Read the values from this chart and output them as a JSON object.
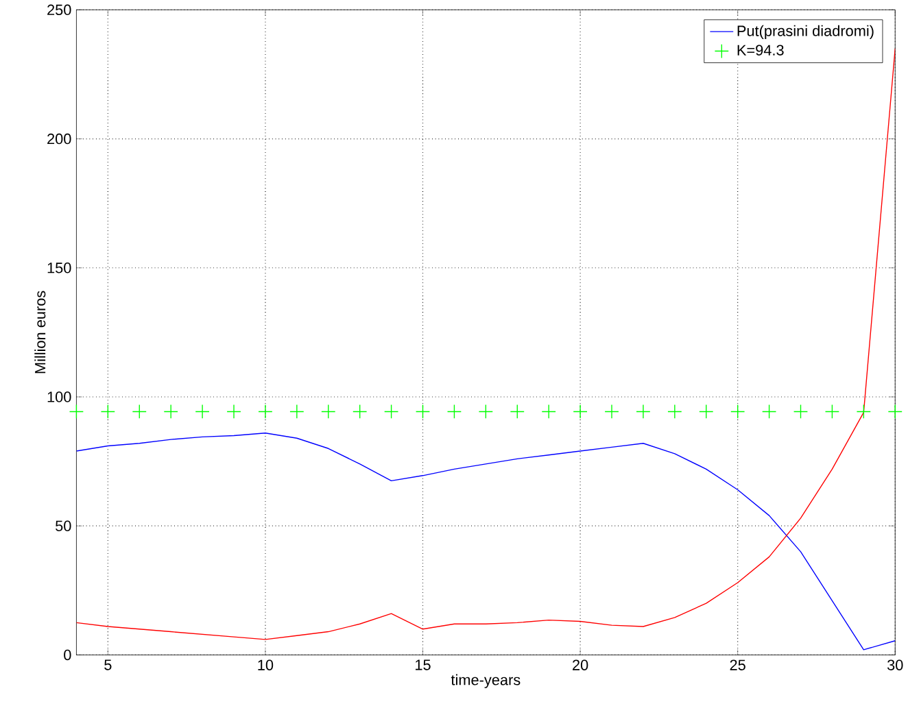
{
  "chart_data": {
    "type": "line",
    "xlabel": "time-years",
    "ylabel": "Million euros",
    "x": [
      4,
      5,
      6,
      7,
      8,
      9,
      10,
      11,
      12,
      13,
      14,
      15,
      16,
      17,
      18,
      19,
      20,
      21,
      22,
      23,
      24,
      25,
      26,
      27,
      28,
      29,
      30
    ],
    "series": [
      {
        "name": "Put(prasini diadromi)",
        "color": "#0000ff",
        "values": [
          79,
          81,
          82,
          83.5,
          84.5,
          85,
          86,
          84,
          80,
          74,
          67.5,
          69.5,
          72,
          74,
          76,
          77.5,
          79,
          80.5,
          82,
          78,
          72,
          64,
          54,
          40,
          21,
          2,
          5.5
        ]
      },
      {
        "name": "K=94.3",
        "type": "scatter",
        "marker": "cross",
        "color": "#00ff00",
        "values": [
          94.3,
          94.3,
          94.3,
          94.3,
          94.3,
          94.3,
          94.3,
          94.3,
          94.3,
          94.3,
          94.3,
          94.3,
          94.3,
          94.3,
          94.3,
          94.3,
          94.3,
          94.3,
          94.3,
          94.3,
          94.3,
          94.3,
          94.3,
          94.3,
          94.3,
          94.3,
          94.3
        ]
      },
      {
        "color": "#ff0000",
        "values": [
          12.5,
          11,
          10,
          9,
          8,
          7,
          6,
          7.5,
          9,
          12,
          16,
          10,
          12,
          12,
          12.5,
          13.5,
          13,
          11.5,
          11,
          14.5,
          20,
          28,
          38,
          53,
          72,
          94,
          235
        ]
      }
    ],
    "xlim": [
      4,
      30
    ],
    "ylim": [
      0,
      250
    ],
    "xticks": [
      5,
      10,
      15,
      20,
      25,
      30
    ],
    "yticks": [
      0,
      50,
      100,
      150,
      200,
      250
    ],
    "grid": true,
    "legend": "top right"
  }
}
